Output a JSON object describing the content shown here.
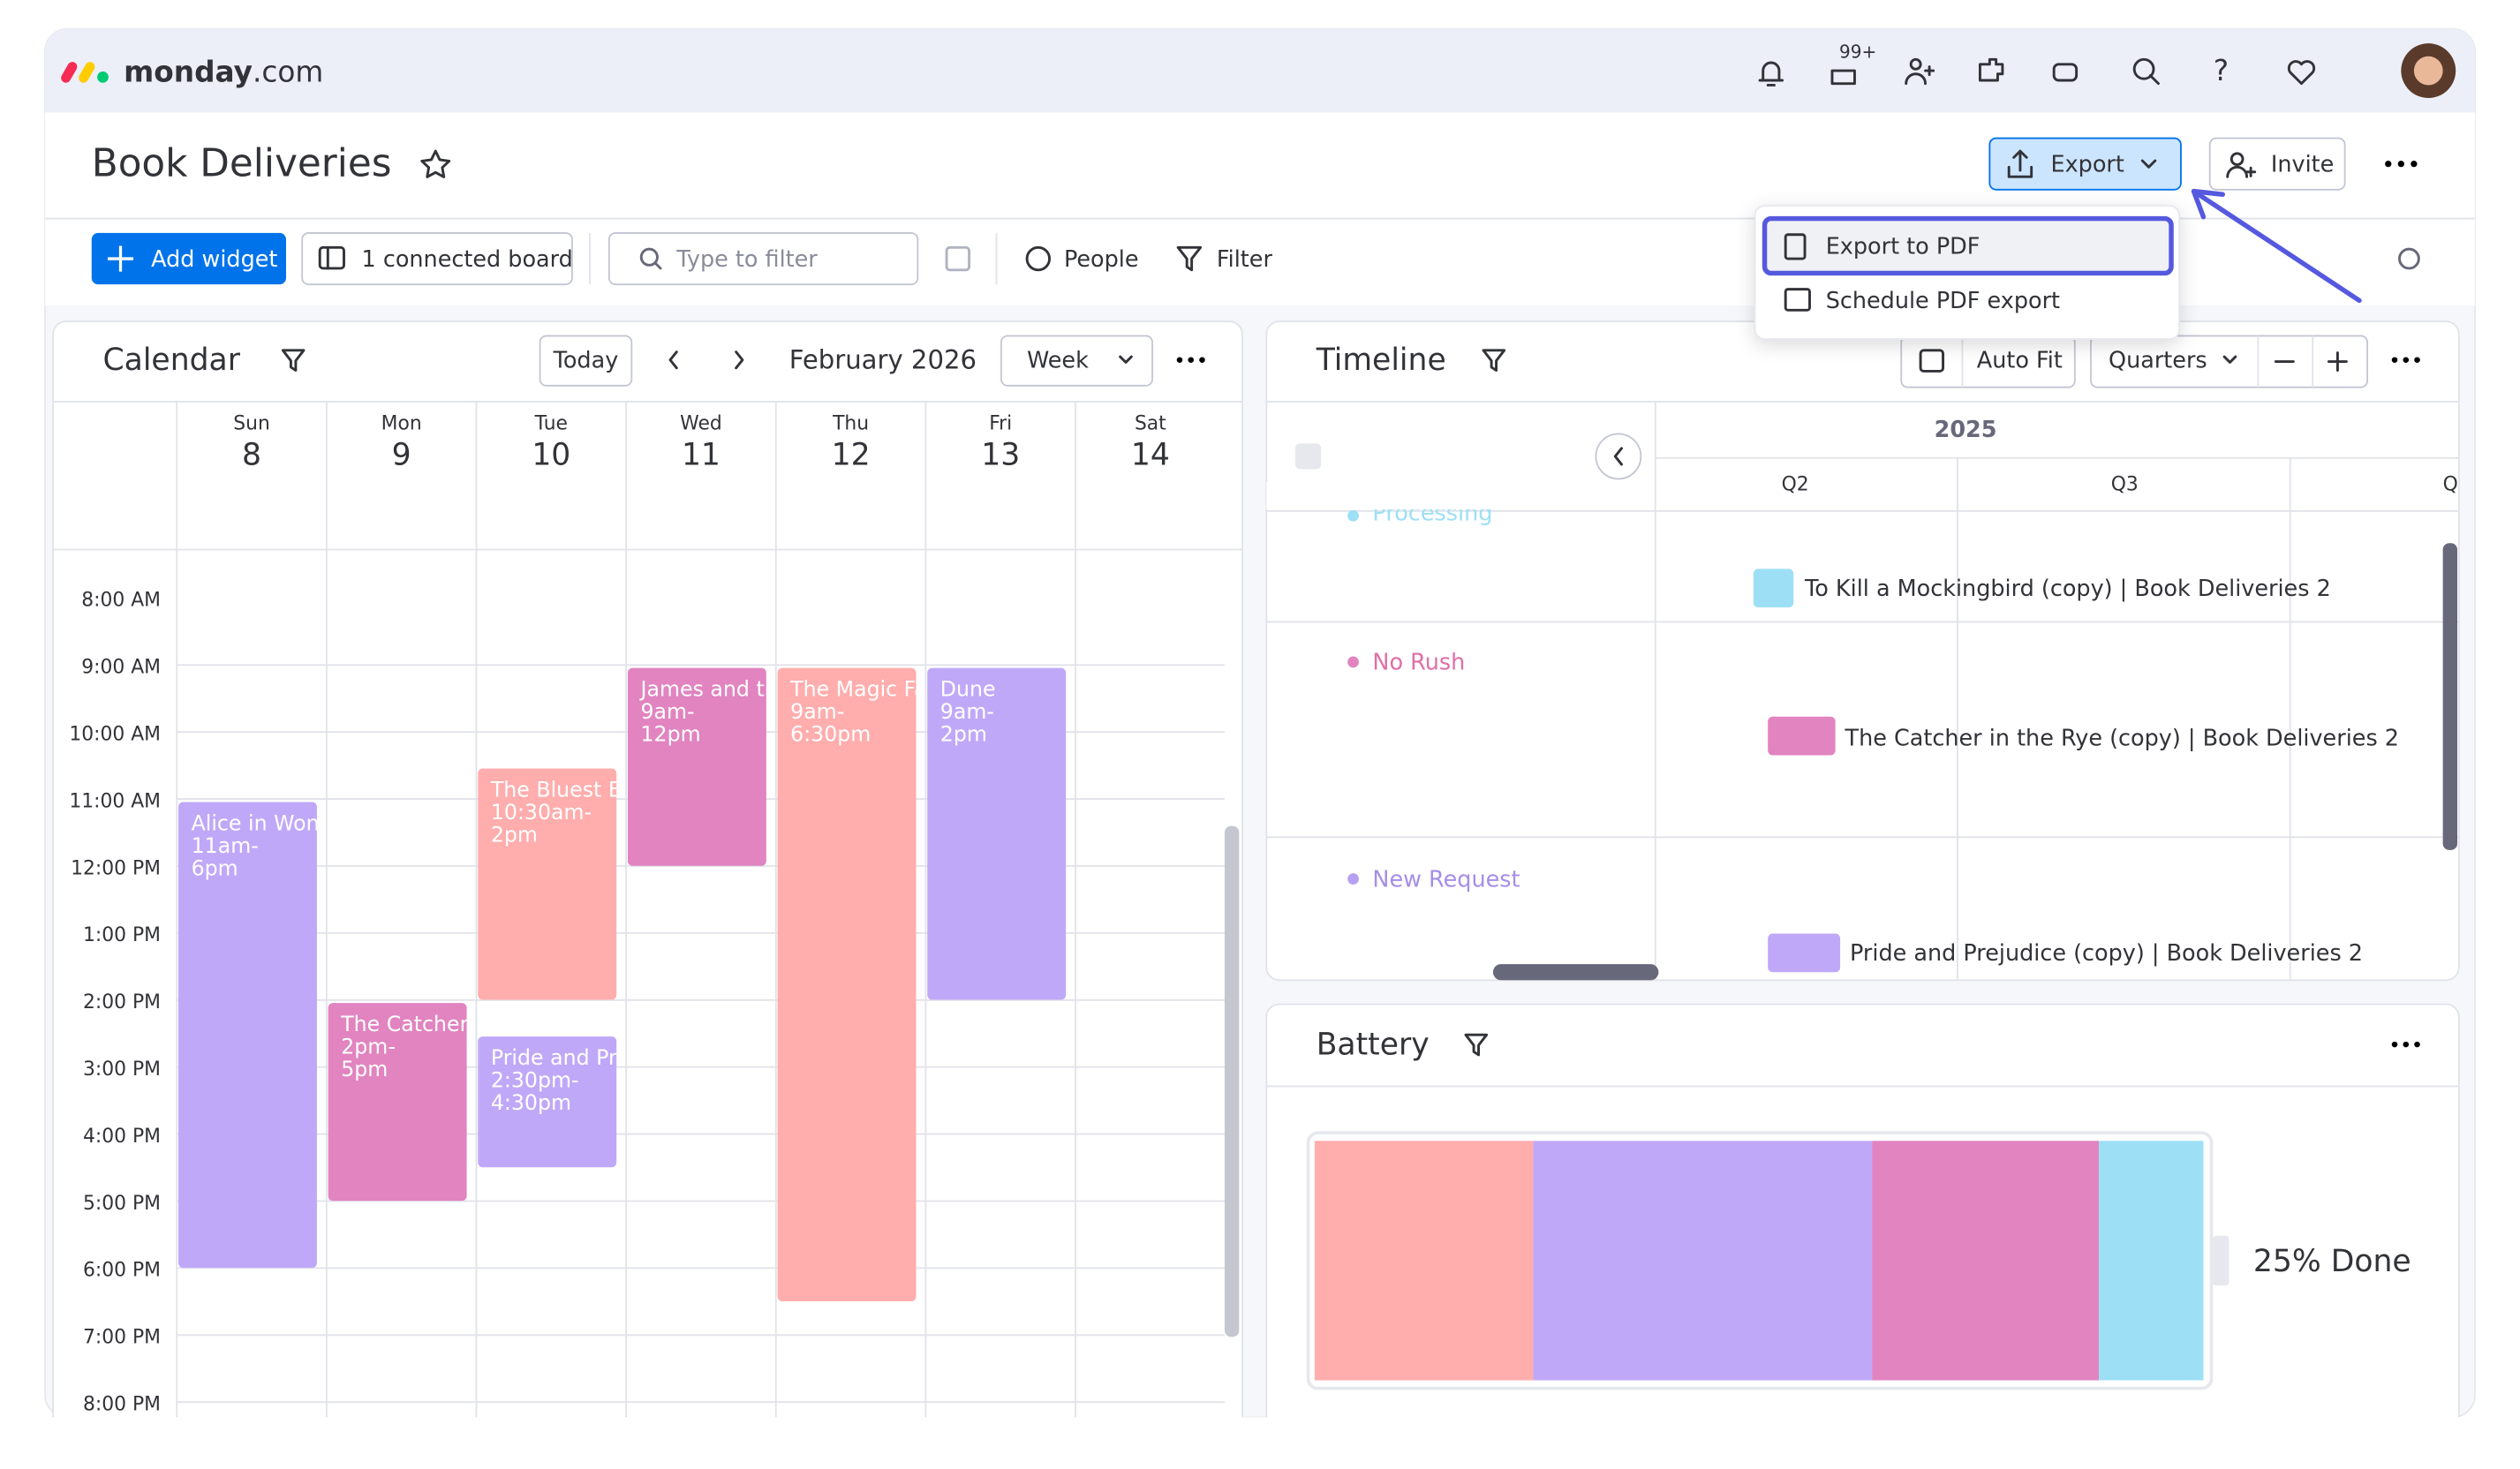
{
  "app": {
    "brand": "monday",
    "brand_suffix": ".com",
    "badge": "99+"
  },
  "board": {
    "title": "Book Deliveries",
    "export": "Export",
    "invite": "Invite"
  },
  "export_menu": [
    "Export to PDF",
    "Schedule PDF export"
  ],
  "toolbar": {
    "add_widget": "Add widget",
    "connected": "1 connected board",
    "filter_placeholder": "Type to filter",
    "people": "People",
    "filter": "Filter"
  },
  "calendar": {
    "title": "Calendar",
    "today": "Today",
    "month": "February 2026",
    "view": "Week",
    "days": [
      {
        "name": "Sun",
        "date": "8"
      },
      {
        "name": "Mon",
        "date": "9"
      },
      {
        "name": "Tue",
        "date": "10"
      },
      {
        "name": "Wed",
        "date": "11"
      },
      {
        "name": "Thu",
        "date": "12"
      },
      {
        "name": "Fri",
        "date": "13"
      },
      {
        "name": "Sat",
        "date": "14"
      }
    ],
    "hours": [
      "8:00 AM",
      "9:00 AM",
      "10:00 AM",
      "11:00 AM",
      "12:00 PM",
      "1:00 PM",
      "2:00 PM",
      "3:00 PM",
      "4:00 PM",
      "5:00 PM",
      "6:00 PM",
      "7:00 PM",
      "8:00 PM"
    ],
    "events": [
      {
        "title": "Alice in Won",
        "time": [
          "11am-",
          "6pm"
        ]
      },
      {
        "title": "The Catcher",
        "time": [
          "2pm-",
          "5pm"
        ]
      },
      {
        "title": "The Bluest Ey",
        "time": [
          "10:30am-",
          "2pm"
        ]
      },
      {
        "title": "Pride and Pre",
        "time": [
          "2:30pm-",
          "4:30pm"
        ]
      },
      {
        "title": "James and th",
        "time": [
          "9am-",
          "12pm"
        ]
      },
      {
        "title": "The Magic Fa",
        "time": [
          "9am-",
          "6:30pm"
        ]
      },
      {
        "title": "Dune",
        "time": [
          "9am-",
          "2pm"
        ]
      }
    ]
  },
  "timeline": {
    "title": "Timeline",
    "auto_fit": "Auto Fit",
    "scale": "Quarters",
    "year": "2025",
    "quarters": [
      "Q2",
      "Q3",
      "Q"
    ],
    "groups": [
      "Processing",
      "No Rush",
      "New Request"
    ],
    "items": [
      "To Kill a Mockingbird (copy) | Book Deliveries 2",
      "The Catcher in the Rye (copy) | Book Deliveries 2",
      "Pride and Prejudice (copy) | Book Deliveries 2"
    ]
  },
  "battery": {
    "title": "Battery",
    "status": "25% Done"
  }
}
